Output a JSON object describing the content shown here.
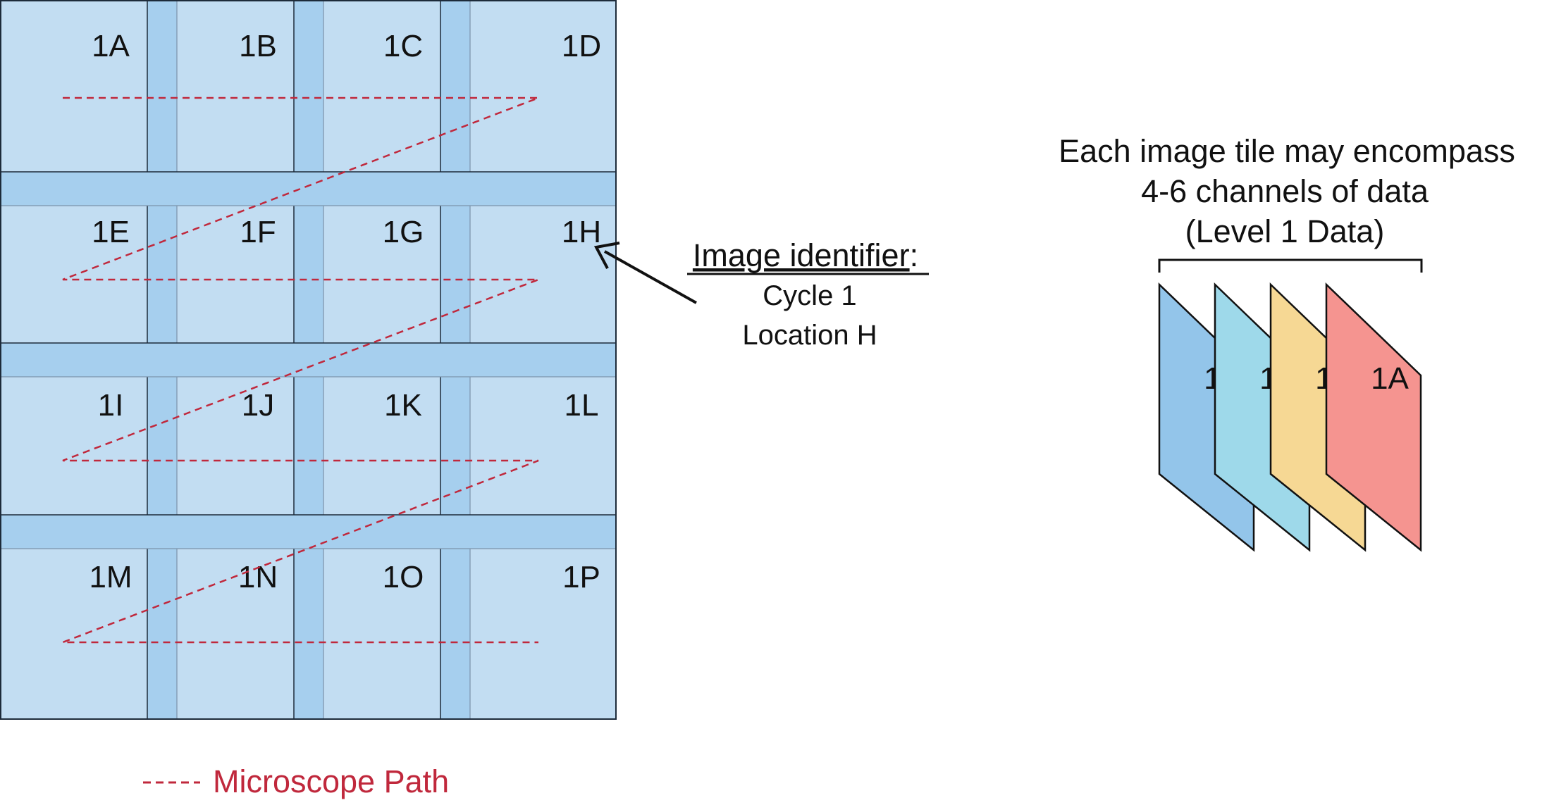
{
  "tiles": {
    "labels": [
      "1A",
      "1B",
      "1C",
      "1D",
      "1E",
      "1F",
      "1G",
      "1H",
      "1I",
      "1J",
      "1K",
      "1L",
      "1M",
      "1N",
      "1O",
      "1P"
    ],
    "fill": "#c2ddf2",
    "overlap_fill": "#a6cfee"
  },
  "path": {
    "color": "#c0283c",
    "legend_label": "Microscope Path"
  },
  "identifier": {
    "heading": "Image identifier",
    "colon": ":",
    "lines": [
      "Cycle 1",
      "Location H"
    ]
  },
  "channels": {
    "caption": [
      "Each image tile may encompass",
      "4-6 channels of data",
      "(Level 1 Data)"
    ],
    "cards": [
      {
        "label": "1A",
        "color": "#93c5ea"
      },
      {
        "label": "1A",
        "color": "#9ed9ea"
      },
      {
        "label": "1A",
        "color": "#f6d894"
      },
      {
        "label": "1A",
        "color": "#f59490"
      }
    ]
  }
}
